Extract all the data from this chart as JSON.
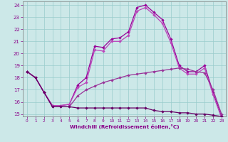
{
  "xlabel": "Windchill (Refroidissement éolien,°C)",
  "background_color": "#cce8e8",
  "grid_color": "#99cccc",
  "line_colors": [
    "#990099",
    "#bb44bb",
    "#993399",
    "#660066"
  ],
  "xlim": [
    -0.5,
    23.5
  ],
  "ylim": [
    14.8,
    24.3
  ],
  "yticks": [
    15,
    16,
    17,
    18,
    19,
    20,
    21,
    22,
    23,
    24
  ],
  "xticks": [
    0,
    1,
    2,
    3,
    4,
    5,
    6,
    7,
    8,
    9,
    10,
    11,
    12,
    13,
    14,
    15,
    16,
    17,
    18,
    19,
    20,
    21,
    22,
    23
  ],
  "lines": [
    [
      18.5,
      18.0,
      16.8,
      15.7,
      15.7,
      15.8,
      17.4,
      18.0,
      20.6,
      20.5,
      21.2,
      21.3,
      21.8,
      23.8,
      24.0,
      23.4,
      22.8,
      21.2,
      19.0,
      18.5,
      18.5,
      19.0,
      16.8,
      14.8
    ],
    [
      18.5,
      18.0,
      16.8,
      15.7,
      15.7,
      15.8,
      17.2,
      17.6,
      20.3,
      20.2,
      21.0,
      21.0,
      21.5,
      23.5,
      23.8,
      23.2,
      22.5,
      20.9,
      18.8,
      18.3,
      18.3,
      18.8,
      16.6,
      14.7
    ],
    [
      18.5,
      18.0,
      16.8,
      15.6,
      15.6,
      15.6,
      16.5,
      17.0,
      17.3,
      17.6,
      17.8,
      18.0,
      18.2,
      18.3,
      18.4,
      18.5,
      18.6,
      18.7,
      18.8,
      18.7,
      18.5,
      18.4,
      17.0,
      15.0
    ],
    [
      18.5,
      18.0,
      16.8,
      15.6,
      15.6,
      15.6,
      15.5,
      15.5,
      15.5,
      15.5,
      15.5,
      15.5,
      15.5,
      15.5,
      15.5,
      15.3,
      15.2,
      15.2,
      15.1,
      15.1,
      15.0,
      15.0,
      14.9,
      14.8
    ]
  ]
}
